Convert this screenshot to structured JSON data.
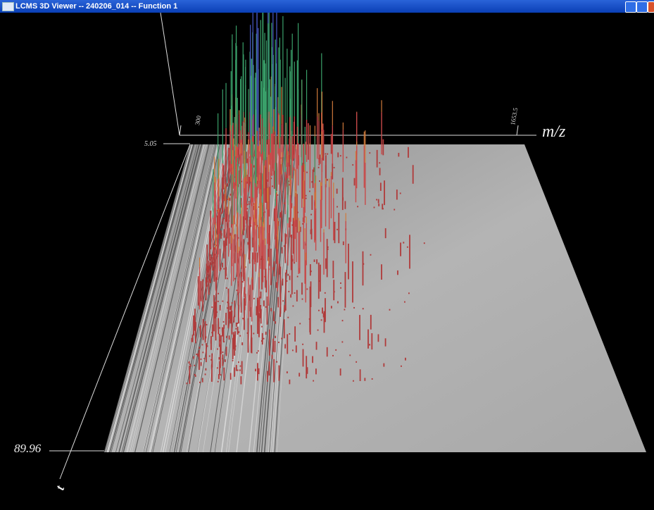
{
  "window": {
    "title": "LCMS 3D Viewer -- 240206_014 -- Function 1"
  },
  "plot": {
    "x_axis": {
      "label": "m/z",
      "start": "300",
      "end": "1653.5"
    },
    "time_axis": {
      "label": "t",
      "start": "5.05",
      "end": "89.96"
    }
  }
}
